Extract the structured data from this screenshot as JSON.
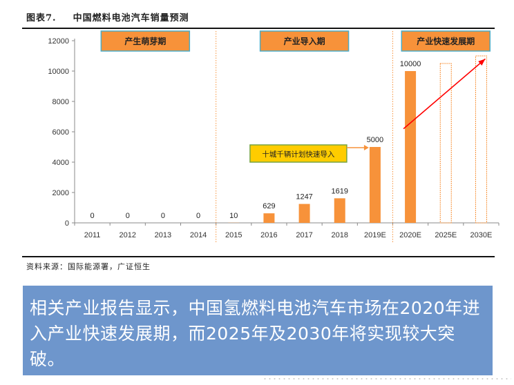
{
  "figure": {
    "label": "图表7.",
    "title": "中国燃料电池汽车销量预测",
    "source": "资料来源：国际能源署，广证恒生"
  },
  "chart_data": {
    "type": "bar",
    "categories": [
      "2011",
      "2012",
      "2013",
      "2014",
      "2015",
      "2016",
      "2017",
      "2018",
      "2019E",
      "2020E",
      "2025E",
      "2030E"
    ],
    "values": [
      0,
      0,
      0,
      0,
      10,
      629,
      1247,
      1619,
      5000,
      10000,
      10500,
      11000
    ],
    "data_labels": [
      "0",
      "0",
      "0",
      "0",
      "10",
      "629",
      "1247",
      "1619",
      "5000",
      "10000",
      "",
      ""
    ],
    "hollow_categories": [
      "2025E",
      "2030E"
    ],
    "ylim": [
      0,
      12000
    ],
    "yticks": [
      0,
      2000,
      4000,
      6000,
      8000,
      10000,
      12000
    ],
    "title": "",
    "xlabel": "",
    "ylabel": "",
    "bar_color": "#f7923a",
    "phases": [
      {
        "label": "产生萌芽期",
        "from": "2011",
        "to": "2014"
      },
      {
        "label": "产业导入期",
        "from": "2015",
        "to": "2019E"
      },
      {
        "label": "产业快速发展期",
        "from": "2020E",
        "to": "2030E"
      }
    ],
    "phase_box_fill": "#f7923a",
    "phase_box_border": "#4bacc6",
    "annotation": {
      "text": "十城千辆计划快速导入",
      "fill": "#ffcc00",
      "border": "#76a342",
      "points_to": "2019E"
    },
    "trend_arrow": {
      "from_category": "2020E",
      "to_category": "2030E",
      "color": "#ff0000"
    }
  },
  "summary_text": "相关产业报告显示，中国氢燃料电池汽车市场在2020年进入产业快速发展期，而2025年及2030年将实现较大突破。"
}
